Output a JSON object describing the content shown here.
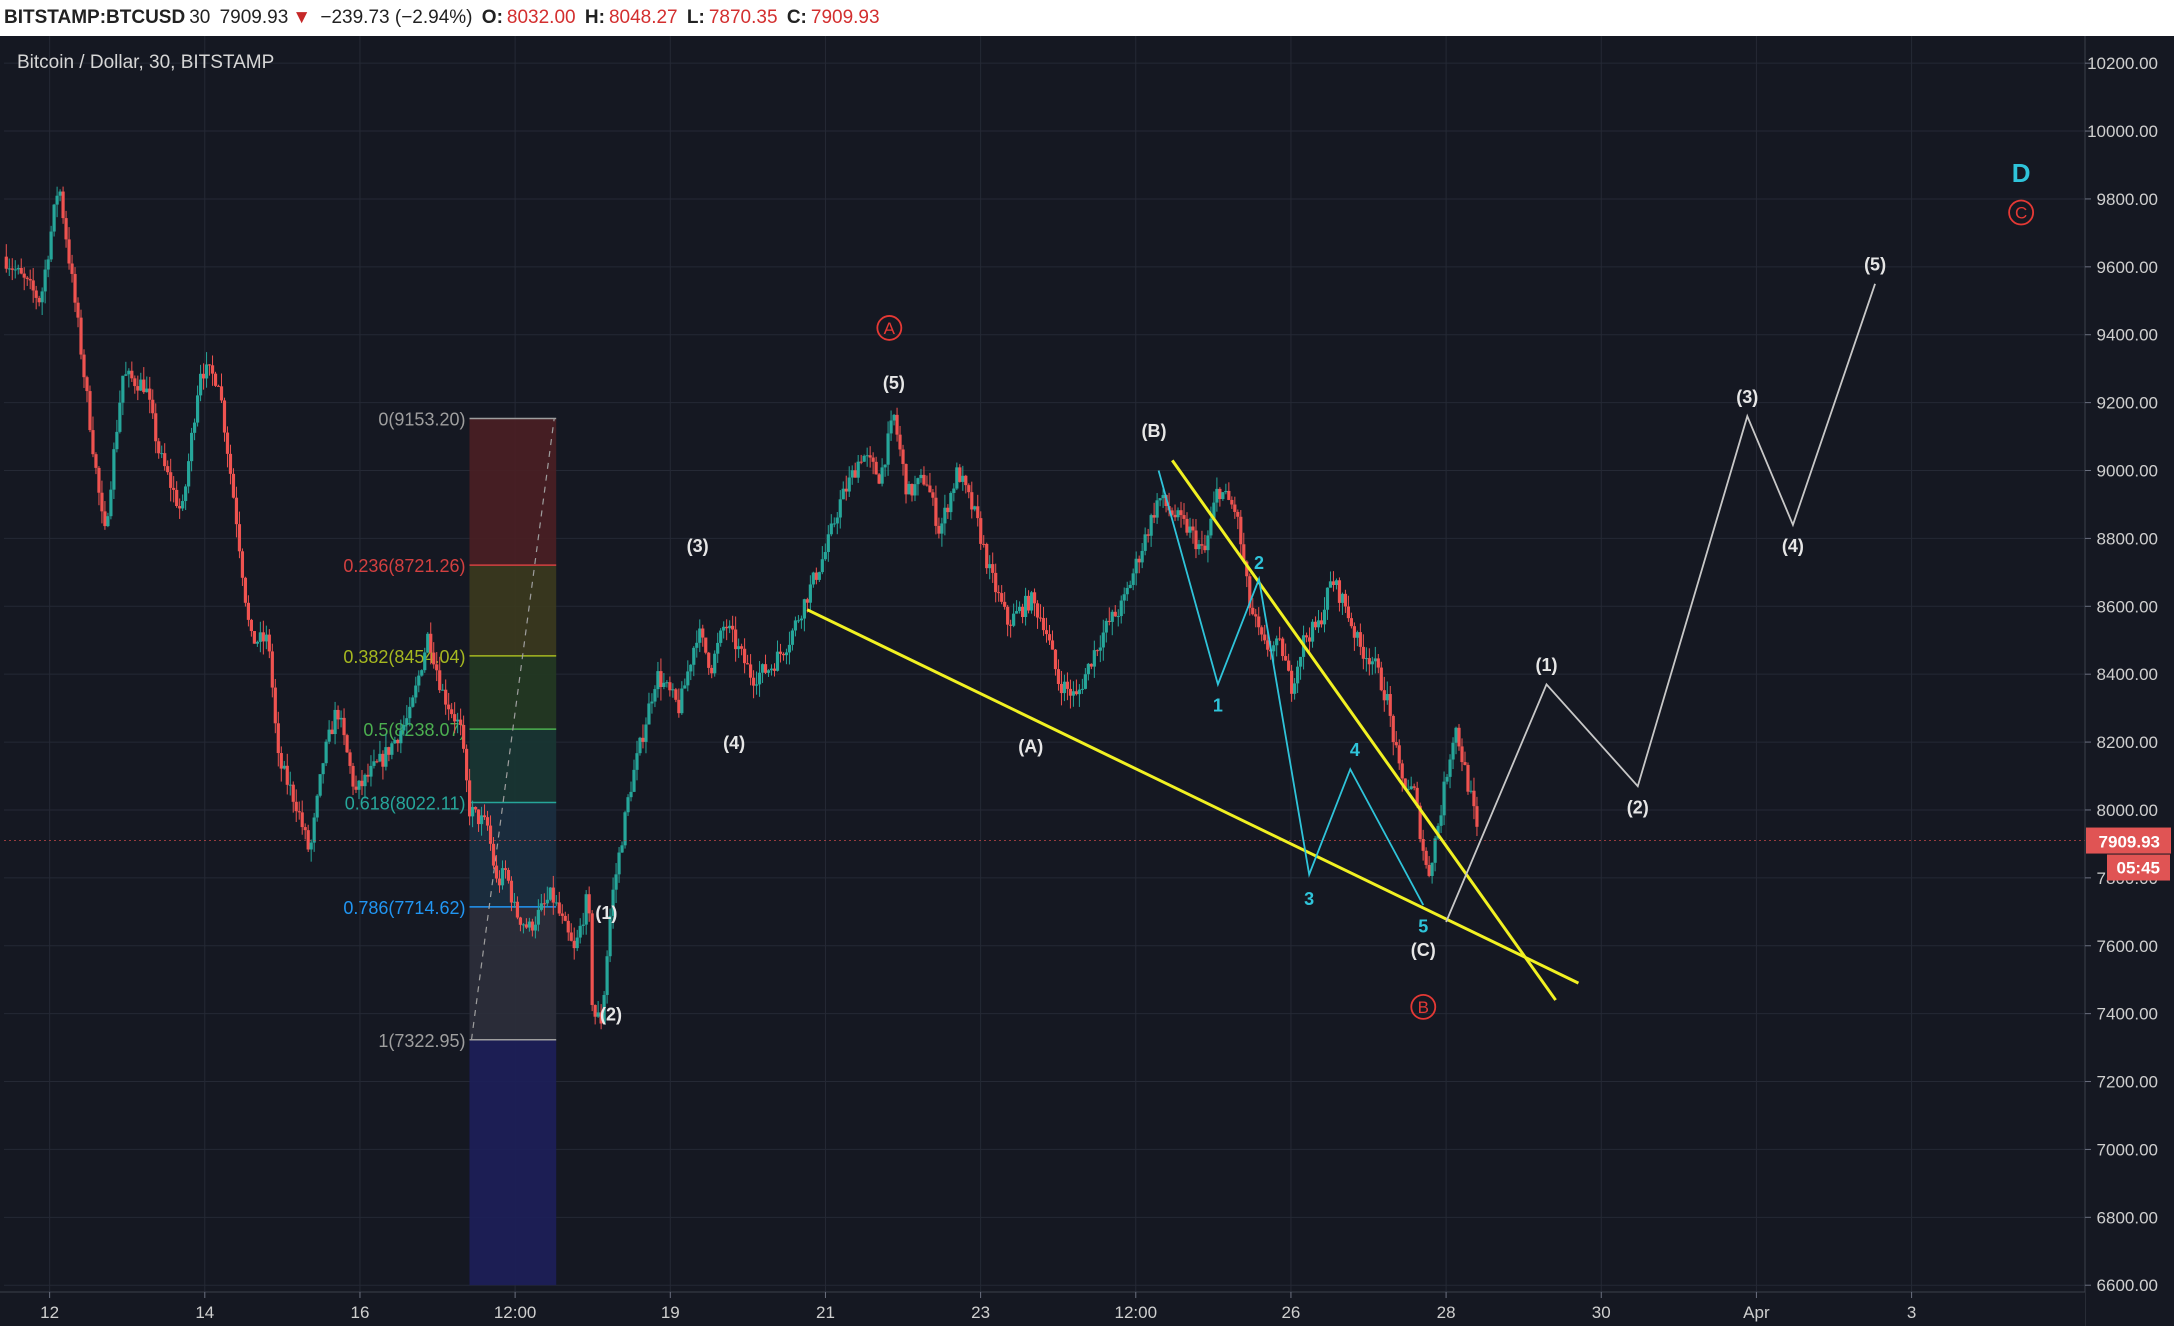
{
  "header": {
    "symbol": "BITSTAMP:BTCUSD",
    "interval": "30",
    "last": "7909.93",
    "change": "−239.73 (−2.94%)",
    "open_label": "O:",
    "open": "8032.00",
    "high_label": "H:",
    "high": "8048.27",
    "low_label": "L:",
    "low": "7870.35",
    "close_label": "C:",
    "close": "7909.93"
  },
  "chart_data": {
    "type": "line",
    "title": "Bitcoin / Dollar, 30, BITSTAMP",
    "ylim": [
      6580,
      10280
    ],
    "y_ticks": [
      "10200.00",
      "10000.00",
      "9800.00",
      "9600.00",
      "9400.00",
      "9200.00",
      "9000.00",
      "8800.00",
      "8600.00",
      "8400.00",
      "8200.00",
      "8000.00",
      "7800.00",
      "7600.00",
      "7400.00",
      "7200.00",
      "7000.00",
      "6800.00",
      "6600.00"
    ],
    "x_ticks": [
      "12",
      "14",
      "16",
      "12:00",
      "19",
      "21",
      "23",
      "12:00",
      "26",
      "28",
      "30",
      "Apr",
      "3"
    ],
    "last_price": "7909.93",
    "countdown": "05:45",
    "colors": {
      "up": "#26a69a",
      "down": "#ef5350",
      "trendline": "#f1f122",
      "cyan_wave": "#2fc4da",
      "projection": "#c8c8c8",
      "circle_label": "#e53935"
    },
    "price_path": [
      [
        0.0,
        9630
      ],
      [
        0.8,
        9500
      ],
      [
        1.2,
        9850
      ],
      [
        1.6,
        9450
      ],
      [
        2.2,
        8800
      ],
      [
        2.6,
        9280
      ],
      [
        3.1,
        9250
      ],
      [
        3.4,
        9050
      ],
      [
        3.9,
        8870
      ],
      [
        4.3,
        9300
      ],
      [
        4.7,
        9270
      ],
      [
        5.1,
        8850
      ],
      [
        5.4,
        8500
      ],
      [
        5.8,
        8500
      ],
      [
        6.0,
        8150
      ],
      [
        6.4,
        8020
      ],
      [
        6.7,
        7870
      ],
      [
        7.0,
        8150
      ],
      [
        7.3,
        8300
      ],
      [
        7.7,
        8050
      ],
      [
        8.1,
        8120
      ],
      [
        8.3,
        8150
      ],
      [
        8.9,
        8280
      ],
      [
        9.3,
        8520
      ],
      [
        9.6,
        8350
      ],
      [
        10.0,
        8240
      ],
      [
        10.2,
        8000
      ],
      [
        10.6,
        7950
      ],
      [
        10.8,
        7780
      ],
      [
        11.0,
        7820
      ],
      [
        11.2,
        7700
      ],
      [
        11.5,
        7650
      ],
      [
        12.0,
        7750
      ],
      [
        12.5,
        7580
      ],
      [
        12.8,
        7750
      ],
      [
        12.9,
        7400
      ],
      [
        13.1,
        7380
      ],
      [
        13.3,
        7720
      ],
      [
        13.7,
        8050
      ],
      [
        14.3,
        8400
      ],
      [
        14.8,
        8300
      ],
      [
        15.2,
        8530
      ],
      [
        15.5,
        8420
      ],
      [
        15.8,
        8550
      ],
      [
        16.4,
        8390
      ],
      [
        16.8,
        8420
      ],
      [
        17.2,
        8500
      ],
      [
        17.5,
        8600
      ],
      [
        18.0,
        8760
      ],
      [
        18.3,
        8900
      ],
      [
        18.8,
        9050
      ],
      [
        19.2,
        8980
      ],
      [
        19.5,
        9160
      ],
      [
        19.8,
        8930
      ],
      [
        20.2,
        8980
      ],
      [
        20.5,
        8820
      ],
      [
        20.9,
        9000
      ],
      [
        21.3,
        8860
      ],
      [
        21.6,
        8700
      ],
      [
        22.0,
        8550
      ],
      [
        22.5,
        8620
      ],
      [
        22.8,
        8550
      ],
      [
        23.1,
        8380
      ],
      [
        23.5,
        8330
      ],
      [
        23.9,
        8470
      ],
      [
        24.2,
        8550
      ],
      [
        24.5,
        8600
      ],
      [
        24.9,
        8760
      ],
      [
        25.3,
        8920
      ],
      [
        25.7,
        8860
      ],
      [
        26.0,
        8820
      ],
      [
        26.3,
        8750
      ],
      [
        26.6,
        8950
      ],
      [
        27.0,
        8880
      ],
      [
        27.3,
        8600
      ],
      [
        27.6,
        8480
      ],
      [
        28.0,
        8480
      ],
      [
        28.2,
        8360
      ],
      [
        28.5,
        8510
      ],
      [
        28.8,
        8540
      ],
      [
        29.1,
        8680
      ],
      [
        29.4,
        8600
      ],
      [
        29.7,
        8480
      ],
      [
        30.0,
        8440
      ],
      [
        30.3,
        8330
      ],
      [
        30.6,
        8090
      ],
      [
        30.9,
        8050
      ],
      [
        31.2,
        7800
      ],
      [
        31.5,
        8010
      ],
      [
        31.6,
        8100
      ],
      [
        31.8,
        8250
      ],
      [
        32.2,
        8000
      ],
      [
        32.3,
        7910
      ]
    ],
    "series": [
      {
        "name": "",
        "role": "fibonacci",
        "x_start": 10.2,
        "x_end": 12.1,
        "levels": [
          {
            "label": "0(9153.20)",
            "value": 9153.2,
            "color": "#9e9e9e",
            "band": "#4a1f24"
          },
          {
            "label": "0.236(8721.26)",
            "value": 8721.26,
            "color": "#d34040",
            "band": "#3b3a1e"
          },
          {
            "label": "0.382(8454.04)",
            "value": 8454.04,
            "color": "#a6b820",
            "band": "#243a22"
          },
          {
            "label": "0.5(8238.07)",
            "value": 8238.07,
            "color": "#4caf50",
            "band": "#183633"
          },
          {
            "label": "0.618(8022.11)",
            "value": 8022.11,
            "color": "#26a69a",
            "band": "#1b2f40"
          },
          {
            "label": "0.786(7714.62)",
            "value": 7714.62,
            "color": "#2196f3",
            "band": "#2c2f3b"
          },
          {
            "label": "1(7322.95)",
            "value": 7322.95,
            "color": "#9e9e9e",
            "band": "#1d1f5a"
          }
        ],
        "bottom": 6600
      },
      {
        "name": "",
        "role": "trendlines",
        "lines": [
          [
            [
              17.6,
              8590
            ],
            [
              34.5,
              7490
            ]
          ],
          [
            [
              25.6,
              9030
            ],
            [
              34.0,
              7440
            ]
          ]
        ]
      },
      {
        "name": "",
        "role": "cyan-wave",
        "points": [
          [
            25.3,
            9000
          ],
          [
            26.6,
            8370
          ],
          [
            27.5,
            8680
          ],
          [
            28.6,
            7810
          ],
          [
            29.5,
            8120
          ],
          [
            31.1,
            7720
          ]
        ],
        "labels": [
          [
            "1",
            26.6,
            8310
          ],
          [
            "2",
            27.5,
            8730
          ],
          [
            "3",
            28.6,
            7740
          ],
          [
            "4",
            29.6,
            8180
          ],
          [
            "5",
            31.1,
            7660
          ]
        ]
      },
      {
        "name": "",
        "role": "projection",
        "points": [
          [
            31.6,
            7670
          ],
          [
            33.8,
            8370
          ],
          [
            35.8,
            8070
          ],
          [
            38.2,
            9160
          ],
          [
            39.2,
            8840
          ],
          [
            41.0,
            9550
          ]
        ],
        "labels": [
          [
            "(1)",
            33.8,
            8430
          ],
          [
            "(2)",
            35.8,
            8010
          ],
          [
            "(3)",
            38.2,
            9220
          ],
          [
            "(4)",
            39.2,
            8780
          ],
          [
            "(5)",
            41.0,
            9610
          ]
        ]
      },
      {
        "name": "",
        "role": "wave-labels",
        "labels": [
          [
            "(1)",
            13.2,
            7700
          ],
          [
            "(2)",
            13.3,
            7400
          ],
          [
            "(3)",
            15.2,
            8780
          ],
          [
            "(4)",
            16.0,
            8200
          ],
          [
            "(5)",
            19.5,
            9260
          ],
          [
            "(A)",
            22.5,
            8190
          ],
          [
            "(B)",
            25.2,
            9120
          ],
          [
            "(C)",
            31.1,
            7590
          ]
        ]
      },
      {
        "name": "",
        "role": "circled-labels",
        "labels": [
          [
            "A",
            19.4,
            9420
          ],
          [
            "B",
            31.1,
            7420
          ],
          [
            "C",
            44.2,
            9760
          ]
        ]
      },
      {
        "name": "",
        "role": "big-labels",
        "labels": [
          [
            "D",
            44.2,
            9880
          ]
        ]
      }
    ]
  }
}
